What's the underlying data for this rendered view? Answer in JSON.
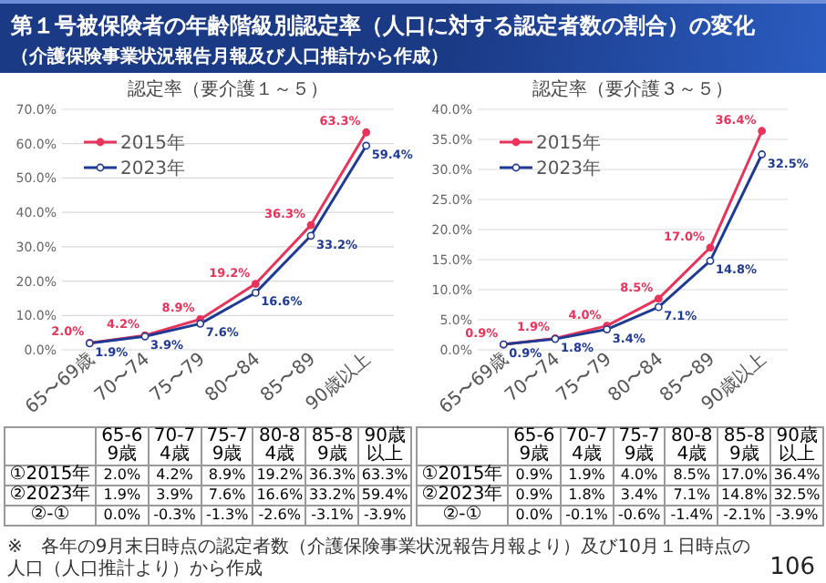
{
  "chart_data": [
    {
      "type": "line",
      "title": "認定率（要介護１～５）",
      "categories": [
        "65〜69歳",
        "70〜74",
        "75〜79",
        "80〜84",
        "85〜89",
        "90歳以上"
      ],
      "ylim": [
        0,
        70
      ],
      "yticks": [
        {
          "value": 0,
          "label": "0.0%"
        },
        {
          "value": 10,
          "label": "10.0%"
        },
        {
          "value": 20,
          "label": "20.0%"
        },
        {
          "value": 30,
          "label": "30.0%"
        },
        {
          "value": 40,
          "label": "40.0%"
        },
        {
          "value": 50,
          "label": "50.0%"
        },
        {
          "value": 60,
          "label": "60.0%"
        },
        {
          "value": 70,
          "label": "70.0%"
        }
      ],
      "grid": "y",
      "legend": "top left",
      "marker": "circle",
      "line_style": "solid",
      "series": [
        {
          "name": "2015年",
          "color": "#e8335a",
          "values": [
            2.0,
            4.2,
            8.9,
            19.2,
            36.3,
            63.3
          ],
          "value_labels": [
            "2.0%",
            "4.2%",
            "8.9%",
            "19.2%",
            "36.3%",
            "63.3%"
          ]
        },
        {
          "name": "2023年",
          "color": "#1f3a93",
          "values": [
            1.9,
            3.9,
            7.6,
            16.6,
            33.2,
            59.4
          ],
          "value_labels": [
            "1.9%",
            "3.9%",
            "7.6%",
            "16.6%",
            "33.2%",
            "59.4%"
          ]
        }
      ],
      "annotations": [
        "第１号被保険者の年齢階級別認定率（人口に対する認定者数の割合）の変化",
        "（介護保険事業状況報告月報及び人口推計から作成）",
        "65-69歳",
        "70-74歳",
        "75-79歳",
        "80-84歳",
        "85-89歳",
        "90歳以上",
        "①2015年",
        "②2023年",
        "②-①",
        "0.0%",
        "-0.3%",
        "-1.3%",
        "-2.6%",
        "-3.1%",
        "-3.9%",
        "※　各年の9月末日時点の認定者数（介護保険事業状況報告月報より）及び10月１日時点の人口（人口推計より）から作成",
        "106"
      ]
    },
    {
      "type": "line",
      "title": "認定率（要介護３～５）",
      "categories": [
        "65〜69歳",
        "70〜74",
        "75〜79",
        "80〜84",
        "85〜89",
        "90歳以上"
      ],
      "ylim": [
        0,
        40
      ],
      "yticks": [
        {
          "value": 0,
          "label": "0.0%"
        },
        {
          "value": 5,
          "label": "5.0%"
        },
        {
          "value": 10,
          "label": "10.0%"
        },
        {
          "value": 15,
          "label": "15.0%"
        },
        {
          "value": 20,
          "label": "20.0%"
        },
        {
          "value": 25,
          "label": "25.0%"
        },
        {
          "value": 30,
          "label": "30.0%"
        },
        {
          "value": 35,
          "label": "35.0%"
        },
        {
          "value": 40,
          "label": "40.0%"
        }
      ],
      "grid": "y",
      "legend": "top left",
      "marker": "circle",
      "line_style": "solid",
      "series": [
        {
          "name": "2015年",
          "color": "#e8335a",
          "values": [
            0.9,
            1.9,
            4.0,
            8.5,
            17.0,
            36.4
          ],
          "value_labels": [
            "0.9%",
            "1.9%",
            "4.0%",
            "8.5%",
            "17.0%",
            "36.4%"
          ]
        },
        {
          "name": "2023年",
          "color": "#1f3a93",
          "values": [
            0.9,
            1.8,
            3.4,
            7.1,
            14.8,
            32.5
          ],
          "value_labels": [
            "0.9%",
            "1.8%",
            "3.4%",
            "7.1%",
            "14.8%",
            "32.5%"
          ]
        }
      ],
      "annotations": [
        "65-69歳",
        "70-74歳",
        "75-79歳",
        "80-84歳",
        "85-89歳",
        "90歳以上",
        "①2015年",
        "②2023年",
        "②-①",
        "0.0%",
        "-0.1%",
        "-0.6%",
        "-1.4%",
        "-2.1%",
        "-3.9%"
      ]
    }
  ]
}
